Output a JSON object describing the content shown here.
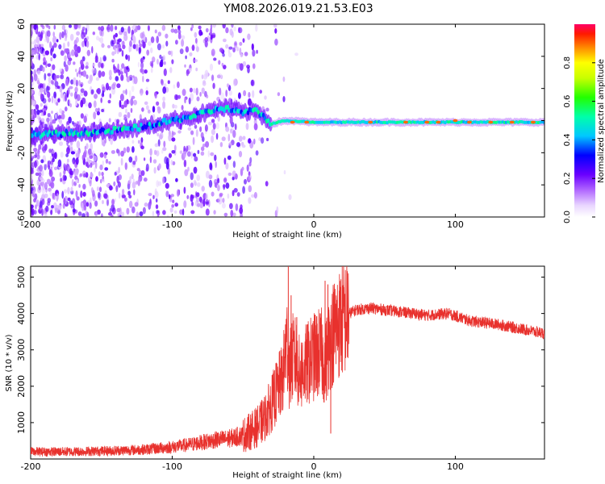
{
  "title": "YM08.2026.019.21.53.E03",
  "chart_data": [
    {
      "type": "heatmap",
      "name": "spectrogram",
      "xlabel": "Height of straight line (km)",
      "ylabel": "Frequency (Hz)",
      "xlim": [
        -200,
        163
      ],
      "ylim": [
        -60,
        60
      ],
      "xticks": [
        -200,
        -100,
        0,
        100
      ],
      "yticks": [
        -60,
        -40,
        -20,
        0,
        20,
        40,
        60
      ],
      "ridge": [
        {
          "x": -200,
          "y": -9
        },
        {
          "x": -150,
          "y": -7
        },
        {
          "x": -120,
          "y": -4
        },
        {
          "x": -100,
          "y": 0
        },
        {
          "x": -80,
          "y": 4
        },
        {
          "x": -65,
          "y": 8
        },
        {
          "x": -50,
          "y": 5
        },
        {
          "x": -40,
          "y": 6
        },
        {
          "x": -30,
          "y": -2
        },
        {
          "x": -20,
          "y": 0
        },
        {
          "x": 0,
          "y": -1
        },
        {
          "x": 50,
          "y": -1
        },
        {
          "x": 100,
          "y": -1
        },
        {
          "x": 163,
          "y": -1
        }
      ],
      "colorbar": {
        "label": "Normalized spectral amplitude",
        "range": [
          0,
          1
        ],
        "ticks": [
          0.0,
          0.2,
          0.4,
          0.6,
          0.8
        ]
      }
    },
    {
      "type": "line",
      "name": "snr",
      "xlabel": "Height of straight line (km)",
      "ylabel": "SNR (10 * v/v)",
      "xlim": [
        -200,
        163
      ],
      "ylim": [
        0,
        5300
      ],
      "xticks": [
        -200,
        -100,
        0,
        100
      ],
      "yticks": [
        1000,
        2000,
        3000,
        4000,
        5000
      ],
      "color": "#e8312d",
      "series": [
        {
          "name": "SNR",
          "x": [
            -200,
            -180,
            -160,
            -140,
            -120,
            -100,
            -90,
            -80,
            -70,
            -60,
            -50,
            -45,
            -40,
            -35,
            -30,
            -25,
            -22,
            -19,
            -17,
            -15,
            -12,
            -10,
            -5,
            0,
            5,
            8,
            10,
            12,
            15,
            20,
            25,
            30,
            40,
            60,
            80,
            95,
            110,
            130,
            150,
            163
          ],
          "y": [
            200,
            200,
            210,
            230,
            260,
            330,
            380,
            450,
            520,
            560,
            650,
            760,
            880,
            1100,
            1500,
            1950,
            2200,
            3200,
            2400,
            2800,
            2700,
            2300,
            2600,
            2800,
            2950,
            2600,
            3000,
            3300,
            3600,
            3800,
            4000,
            4100,
            4150,
            4050,
            3950,
            4000,
            3800,
            3700,
            3550,
            3450
          ]
        }
      ],
      "spikes": [
        {
          "x": -18,
          "y": 5300
        },
        {
          "x": -16,
          "y": 4500
        },
        {
          "x": -20,
          "y": 3700
        },
        {
          "x": -12,
          "y": 3900
        },
        {
          "x": -8,
          "y": 3200
        },
        {
          "x": 8,
          "y": 4900
        },
        {
          "x": 10,
          "y": 4800
        },
        {
          "x": 11,
          "y": 3700
        },
        {
          "x": 12,
          "y": 700
        }
      ]
    }
  ]
}
